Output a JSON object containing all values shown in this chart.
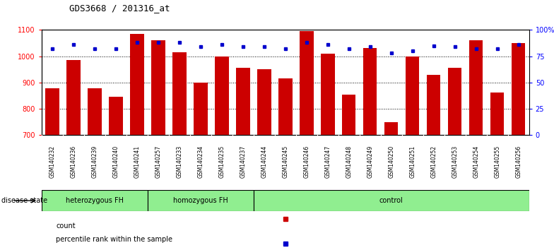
{
  "title": "GDS3668 / 201316_at",
  "samples": [
    "GSM140232",
    "GSM140236",
    "GSM140239",
    "GSM140240",
    "GSM140241",
    "GSM140257",
    "GSM140233",
    "GSM140234",
    "GSM140235",
    "GSM140237",
    "GSM140244",
    "GSM140245",
    "GSM140246",
    "GSM140247",
    "GSM140248",
    "GSM140249",
    "GSM140250",
    "GSM140251",
    "GSM140252",
    "GSM140253",
    "GSM140254",
    "GSM140255",
    "GSM140256"
  ],
  "counts": [
    877,
    985,
    878,
    845,
    1085,
    1060,
    1015,
    900,
    1000,
    955,
    950,
    915,
    1095,
    1010,
    855,
    1030,
    750,
    1000,
    930,
    955,
    1060,
    862,
    1050
  ],
  "percentiles": [
    82,
    86,
    82,
    82,
    88,
    88,
    88,
    84,
    86,
    84,
    84,
    82,
    88,
    86,
    82,
    84,
    78,
    80,
    85,
    84,
    82,
    82,
    86
  ],
  "bar_color": "#CC0000",
  "dot_color": "#0000CC",
  "ylim_left": [
    700,
    1100
  ],
  "ylim_right": [
    0,
    100
  ],
  "yticks_left": [
    700,
    800,
    900,
    1000,
    1100
  ],
  "yticks_right": [
    0,
    25,
    50,
    75,
    100
  ],
  "yticklabels_right": [
    "0",
    "25",
    "50",
    "75",
    "100%"
  ],
  "group_defs": [
    {
      "start": 0,
      "end": 4,
      "label": "heterozygous FH"
    },
    {
      "start": 5,
      "end": 9,
      "label": "homozygous FH"
    },
    {
      "start": 10,
      "end": 22,
      "label": "control"
    }
  ],
  "tick_bg_color": "#d0d0d0",
  "group_bg_color": "#90EE90",
  "legend_count_label": "count",
  "legend_pct_label": "percentile rank within the sample",
  "disease_state_label": "disease state"
}
